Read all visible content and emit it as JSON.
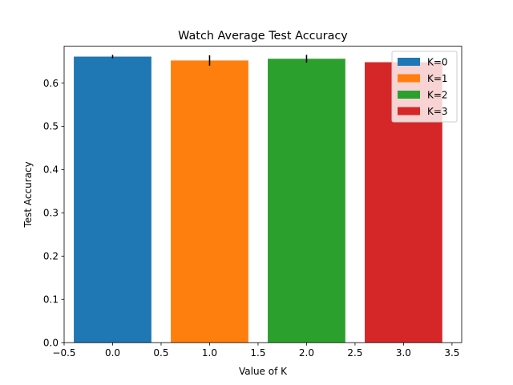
{
  "chart_data": {
    "type": "bar",
    "title": "Watch Average Test Accuracy",
    "xlabel": "Value of K",
    "ylabel": "Test Accuracy",
    "xlim": [
      -0.5,
      3.6
    ],
    "ylim": [
      0.0,
      0.685
    ],
    "bar_width": 0.8,
    "xticks": [
      -0.5,
      0.0,
      0.5,
      1.0,
      1.5,
      2.0,
      2.5,
      3.0,
      3.5
    ],
    "xtick_labels": [
      "−0.5",
      "0.0",
      "0.5",
      "1.0",
      "1.5",
      "2.0",
      "2.5",
      "3.0",
      "3.5"
    ],
    "yticks": [
      0.0,
      0.1,
      0.2,
      0.3,
      0.4,
      0.5,
      0.6
    ],
    "ytick_labels": [
      "0.0",
      "0.1",
      "0.2",
      "0.3",
      "0.4",
      "0.5",
      "0.6"
    ],
    "grid": false,
    "legend_position": "top-right",
    "series": [
      {
        "name": "K=0",
        "x": 0,
        "value": 0.661,
        "error": 0.004,
        "color": "#1f77b4"
      },
      {
        "name": "K=1",
        "x": 1,
        "value": 0.652,
        "error": 0.012,
        "color": "#ff7f0e"
      },
      {
        "name": "K=2",
        "x": 2,
        "value": 0.656,
        "error": 0.009,
        "color": "#2ca02c"
      },
      {
        "name": "K=3",
        "x": 3,
        "value": 0.648,
        "error": 0.0,
        "color": "#d62728"
      }
    ]
  }
}
